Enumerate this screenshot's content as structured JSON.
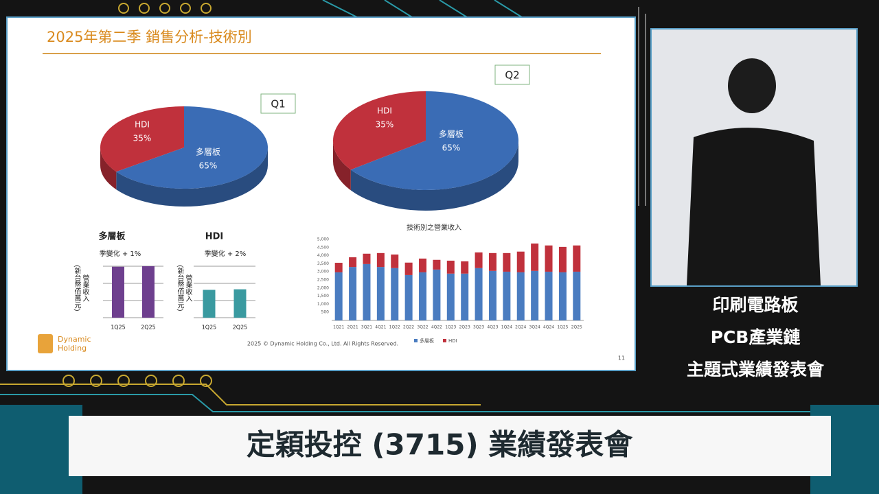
{
  "slide": {
    "title": "2025年第二季 銷售分析-技術別",
    "footer": "2025 © Dynamic Holding Co., Ltd. All Rights Reserved.",
    "page_number": "11",
    "logo": [
      "Dynamic",
      "Holding"
    ]
  },
  "side_text": [
    "印刷電路板",
    "PCB產業鏈",
    "主題式業績發表會"
  ],
  "banner": "定穎投控 (3715) 業績發表會",
  "chart_data": [
    {
      "type": "pie",
      "title": "Q1",
      "categories": [
        "HDI",
        "多層板"
      ],
      "values": [
        35,
        65
      ],
      "value_labels": [
        "35%",
        "65%"
      ],
      "colors": [
        "#c0313c",
        "#3a6cb5"
      ]
    },
    {
      "type": "pie",
      "title": "Q2",
      "categories": [
        "HDI",
        "多層板"
      ],
      "values": [
        35,
        65
      ],
      "value_labels": [
        "35%",
        "65%"
      ],
      "colors": [
        "#c0313c",
        "#3a6cb5"
      ]
    },
    {
      "type": "bar",
      "title": "多層板",
      "subtitle": "季變化 + 1%",
      "ylabel": [
        "營業收入",
        "(新台幣佰萬元)"
      ],
      "categories": [
        "1Q25",
        "2Q25"
      ],
      "values": [
        100,
        101
      ],
      "ylim": [
        0,
        101
      ],
      "color": "#6e3f8e"
    },
    {
      "type": "bar",
      "title": "HDI",
      "subtitle": "季變化 + 2%",
      "ylabel": [
        "營業收入",
        "(新台幣佰萬元)"
      ],
      "categories": [
        "1Q25",
        "2Q25"
      ],
      "values": [
        100,
        102
      ],
      "ylim": [
        0,
        185
      ],
      "color": "#3a9aa0"
    },
    {
      "type": "stacked_bar",
      "title": "技術別之營業收入",
      "categories": [
        "1Q21",
        "2Q21",
        "3Q21",
        "4Q21",
        "1Q22",
        "2Q22",
        "3Q22",
        "4Q22",
        "1Q23",
        "2Q23",
        "3Q23",
        "4Q23",
        "1Q24",
        "2Q24",
        "3Q24",
        "4Q24",
        "1Q25",
        "2Q25"
      ],
      "series": [
        {
          "name": "多層板",
          "color": "#4a7cc0",
          "values": [
            2970,
            3300,
            3480,
            3300,
            3230,
            2800,
            2970,
            3140,
            2890,
            2890,
            3230,
            3060,
            3010,
            2970,
            3060,
            3010,
            2970,
            3010
          ]
        },
        {
          "name": "HDI",
          "color": "#c0313c",
          "values": [
            590,
            600,
            640,
            860,
            840,
            770,
            850,
            600,
            800,
            760,
            970,
            1100,
            1150,
            1280,
            1690,
            1620,
            1570,
            1620
          ]
        }
      ],
      "ylim": [
        0,
        5000
      ],
      "yticks": [
        500,
        {
          "value": 1000,
          "label": "1,000"
        },
        {
          "value": 1500,
          "label": "1,500"
        },
        {
          "value": 2000,
          "label": "2,000"
        },
        {
          "value": 2500,
          "label": "2,500"
        },
        {
          "value": 3000,
          "label": "3,000"
        },
        {
          "value": 3500,
          "label": "3,500"
        },
        {
          "value": 4000,
          "label": "4,000"
        },
        {
          "value": 4500,
          "label": "4,500"
        },
        {
          "value": 5000,
          "label": "5,000"
        }
      ]
    }
  ]
}
